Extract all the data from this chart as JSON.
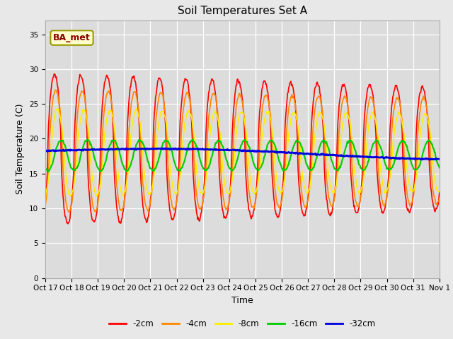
{
  "title": "Soil Temperatures Set A",
  "xlabel": "Time",
  "ylabel": "Soil Temperature (C)",
  "fig_facecolor": "#e8e8e8",
  "ax_facecolor": "#dcdcdc",
  "annotation_text": "BA_met",
  "annotation_color": "#8B0000",
  "annotation_bg": "#ffffcc",
  "annotation_edge": "#999900",
  "ylim": [
    0,
    37
  ],
  "yticks": [
    0,
    5,
    10,
    15,
    20,
    25,
    30,
    35
  ],
  "xtick_labels": [
    "Oct 17",
    "Oct 18",
    "Oct 19",
    "Oct 20",
    "Oct 21",
    "Oct 22",
    "Oct 23",
    "Oct 24",
    "Oct 25",
    "Oct 26",
    "Oct 27",
    "Oct 28",
    "Oct 29",
    "Oct 30",
    "Oct 31",
    "Nov 1"
  ],
  "series_colors": [
    "#ff0000",
    "#ff8800",
    "#ffee00",
    "#00cc00",
    "#0000dd"
  ],
  "series_labels": [
    "-2cm",
    "-4cm",
    "-8cm",
    "-16cm",
    "-32cm"
  ],
  "series_linewidths": [
    1.2,
    1.2,
    1.2,
    1.5,
    2.0
  ],
  "title_fontsize": 11,
  "axis_fontsize": 9,
  "tick_fontsize": 7.5,
  "legend_fontsize": 8.5
}
